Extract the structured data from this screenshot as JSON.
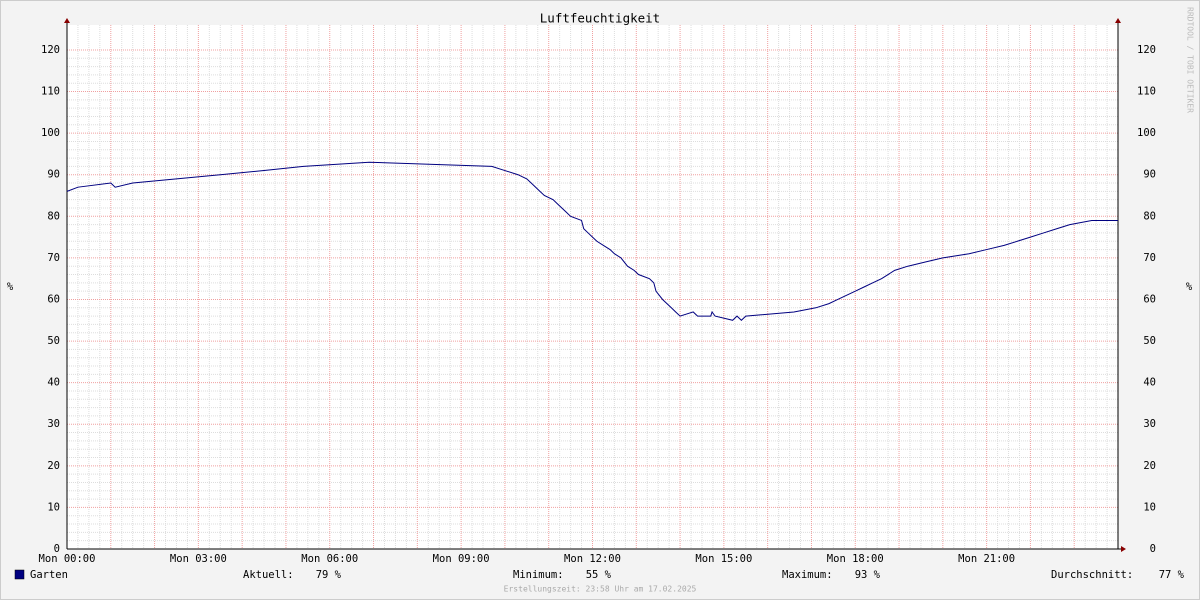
{
  "chart_data": {
    "type": "line",
    "title": "Luftfeuchtigkeit",
    "y_label": "%",
    "y2_label": "%",
    "watermark": "RRDTOOL / TOBI OETIKER",
    "x": [
      0,
      0.25,
      1.0,
      1.1,
      1.5,
      2.5,
      3.5,
      4.5,
      5.4,
      6.9,
      9.7,
      10.0,
      10.3,
      10.5,
      10.6,
      10.8,
      10.9,
      11.1,
      11.2,
      11.3,
      11.4,
      11.5,
      11.75,
      11.8,
      11.9,
      12.0,
      12.1,
      12.25,
      12.4,
      12.5,
      12.65,
      12.8,
      12.95,
      13.05,
      13.3,
      13.4,
      13.45,
      13.6,
      13.8,
      13.9,
      14.0,
      14.3,
      14.4,
      14.7,
      14.73,
      14.8,
      15.2,
      15.3,
      15.4,
      15.5,
      16.6,
      17.1,
      17.4,
      17.6,
      17.8,
      18.0,
      18.2,
      18.4,
      18.6,
      18.75,
      18.9,
      19.2,
      19.6,
      20.0,
      20.6,
      21.0,
      21.4,
      21.7,
      22.0,
      22.3,
      22.6,
      22.9,
      23.4,
      24
    ],
    "series": [
      {
        "name": "Garten",
        "color": "#000080",
        "values": [
          86,
          87,
          88,
          87,
          88,
          89,
          90,
          91,
          92,
          93,
          92,
          91,
          90,
          89,
          88,
          86,
          85,
          84,
          83,
          82,
          81,
          80,
          79,
          77,
          76,
          75,
          74,
          73,
          72,
          71,
          70,
          68,
          67,
          66,
          65,
          64,
          62,
          60,
          58,
          57,
          56,
          57,
          56,
          56,
          57,
          56,
          55,
          56,
          55,
          56,
          57,
          58,
          59,
          60,
          61,
          62,
          63,
          64,
          65,
          66,
          67,
          68,
          69,
          70,
          71,
          72,
          73,
          74,
          75,
          76,
          77,
          78,
          79,
          79
        ]
      }
    ],
    "xlim": [
      0,
      24
    ],
    "xticks": [
      {
        "value": 0,
        "label": "Mon 00:00"
      },
      {
        "value": 3,
        "label": "Mon 03:00"
      },
      {
        "value": 6,
        "label": "Mon 06:00"
      },
      {
        "value": 9,
        "label": "Mon 09:00"
      },
      {
        "value": 12,
        "label": "Mon 12:00"
      },
      {
        "value": 15,
        "label": "Mon 15:00"
      },
      {
        "value": 18,
        "label": "Mon 18:00"
      },
      {
        "value": 21,
        "label": "Mon 21:00"
      }
    ],
    "ylim": [
      0,
      126
    ],
    "yticks": [
      0,
      10,
      20,
      30,
      40,
      50,
      60,
      70,
      80,
      90,
      100,
      110,
      120
    ],
    "y2lim": [
      0,
      126
    ],
    "y2ticks": [
      0,
      10,
      20,
      30,
      40,
      50,
      60,
      70,
      80,
      90,
      100,
      110,
      120
    ],
    "grid": true,
    "stats": [
      {
        "label": "Aktuell:",
        "value": 79,
        "value_label": "79 %"
      },
      {
        "label": "Minimum:",
        "value": 55,
        "value_label": "55 %"
      },
      {
        "label": "Maximum:",
        "value": 93,
        "value_label": "93 %"
      },
      {
        "label": "Durchschnitt:",
        "value": 77,
        "value_label": "77 %"
      }
    ],
    "footer": "Erstellungszeit: 23:58 Uhr am 17.02.2025"
  }
}
